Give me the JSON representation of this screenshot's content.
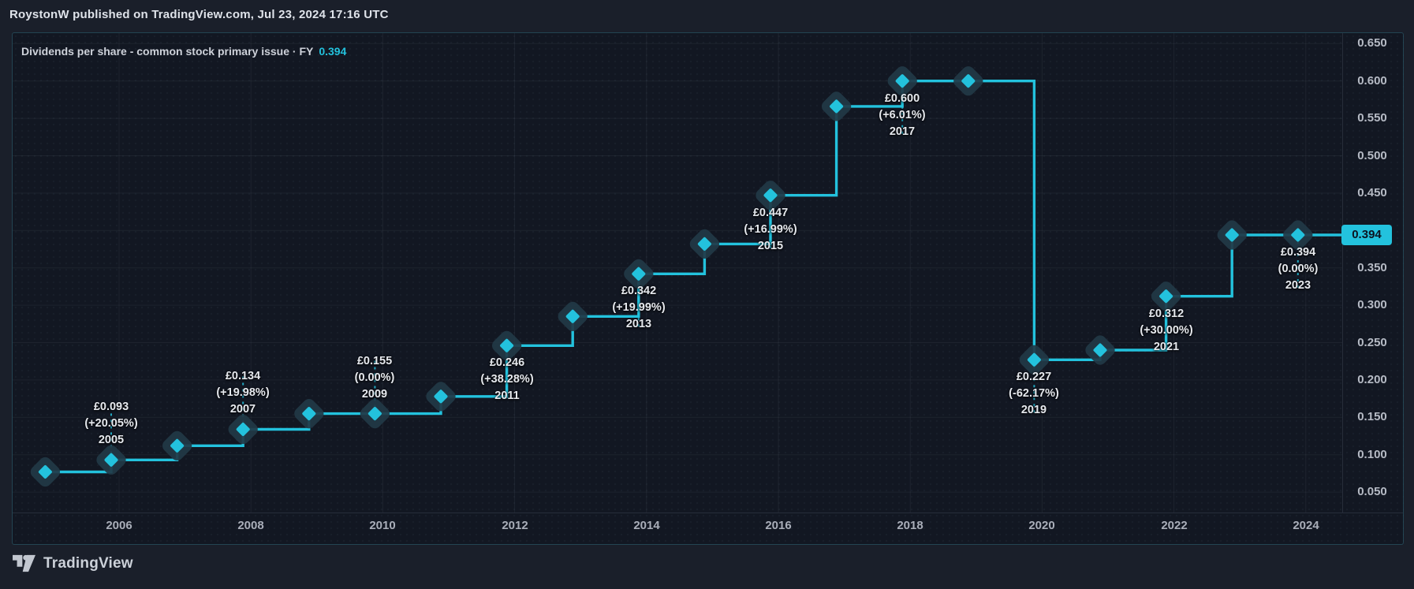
{
  "header": {
    "published_line": "RoystonW published on TradingView.com, Jul 23, 2024 17:16 UTC"
  },
  "legend": {
    "title": "Dividends per share - common stock primary issue · FY",
    "value": "0.394"
  },
  "axis_badge": "0.394",
  "footer": {
    "brand": "TradingView"
  },
  "colors": {
    "accent": "#23c2dd",
    "badge_text": "#0c1420",
    "marker_halo": "#223a47",
    "pane_bg": "#121722",
    "outer_bg": "#1a1f2a",
    "grid": "rgba(190,205,230,0.065)",
    "label_text": "#e6e9ee",
    "axis_text": "#b6bbc5"
  },
  "chart_data": {
    "type": "line",
    "step": true,
    "title": "Dividends per share - common stock primary issue · FY",
    "unit": "£",
    "x": [
      2004,
      2005,
      2006,
      2007,
      2008,
      2009,
      2010,
      2011,
      2012,
      2013,
      2014,
      2015,
      2016,
      2017,
      2018,
      2019,
      2020,
      2021,
      2022,
      2023
    ],
    "values": [
      0.077,
      0.093,
      0.112,
      0.134,
      0.155,
      0.155,
      0.178,
      0.246,
      0.285,
      0.342,
      0.382,
      0.447,
      0.566,
      0.6,
      0.6,
      0.227,
      0.24,
      0.312,
      0.394,
      0.394
    ],
    "last_value": 0.394,
    "point_labels": [
      {
        "year": 2005,
        "price": "£0.093",
        "change": "(+20.05%)",
        "position": "above"
      },
      {
        "year": 2007,
        "price": "£0.134",
        "change": "(+19.98%)",
        "position": "above"
      },
      {
        "year": 2009,
        "price": "£0.155",
        "change": "(0.00%)",
        "position": "above"
      },
      {
        "year": 2011,
        "price": "£0.246",
        "change": "(+38.28%)",
        "position": "below"
      },
      {
        "year": 2013,
        "price": "£0.342",
        "change": "(+19.99%)",
        "position": "below"
      },
      {
        "year": 2015,
        "price": "£0.447",
        "change": "(+16.99%)",
        "position": "below"
      },
      {
        "year": 2017,
        "price": "£0.600",
        "change": "(+6.01%)",
        "position": "below"
      },
      {
        "year": 2019,
        "price": "£0.227",
        "change": "(-62.17%)",
        "position": "below"
      },
      {
        "year": 2021,
        "price": "£0.312",
        "change": "(+30.00%)",
        "position": "below"
      },
      {
        "year": 2023,
        "price": "£0.394",
        "change": "(0.00%)",
        "position": "below"
      }
    ],
    "y_ticks": [
      0.65,
      0.6,
      0.55,
      0.5,
      0.45,
      0.4,
      0.35,
      0.3,
      0.25,
      0.2,
      0.15,
      0.1,
      0.05
    ],
    "hidden_y_labels": [
      0.4
    ],
    "x_ticks": [
      2006,
      2008,
      2010,
      2012,
      2014,
      2016,
      2018,
      2020,
      2022,
      2024
    ],
    "ylim": [
      0.023,
      0.672
    ],
    "grid": true,
    "legend_position": "top-left"
  }
}
